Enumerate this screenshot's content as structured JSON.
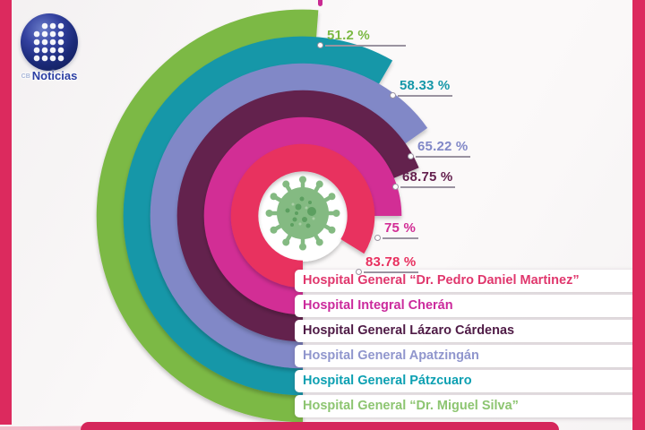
{
  "page": {
    "background": "#fbf9f9",
    "edge_color": "#dc2a5e",
    "bottom_bar_color": "#d5275b",
    "light_pink_wedge_color": "#f2bcca",
    "underline_color": "#9a93a0",
    "title_remnant_color": "#c92a92"
  },
  "brand": {
    "prefix": "CB",
    "name": "Noticias",
    "logo_icon": "dot-matrix-sphere"
  },
  "chart_data": {
    "type": "bar",
    "variant": "radial-concentric-arcs",
    "unit": "%",
    "start_angle_deg": 180,
    "sweep_direction": "clockwise",
    "value_range": [
      0,
      100
    ],
    "center_icon": "coronavirus-virus",
    "center_icon_colors": {
      "body": "#84ba82",
      "spots": "#5c9f60",
      "speckles": "#aacfa6"
    },
    "order_note": "index 0 = innermost arc, listed top-to-bottom in legend",
    "categories": [
      "Hospital General “Dr. Pedro Daniel Martinez”",
      "Hospital Integral Cherán",
      "Hospital General Lázaro Cárdenas",
      "Hospital General Apatzingán",
      "Hospital General Pátzcuaro",
      "Hospital General “Dr. Miguel Silva”"
    ],
    "values": [
      83.78,
      75,
      68.75,
      65.22,
      58.33,
      51.2
    ],
    "value_labels": [
      "83.78 %",
      "75 %",
      "68.75 %",
      "65.22 %",
      "58.33 %",
      "51.2 %"
    ],
    "colors": [
      "#e8305f",
      "#d22d95",
      "#64204e",
      "#8188c7",
      "#1697a8",
      "#7cb944"
    ],
    "legend_text_colors": [
      "#e0376d",
      "#cb2a9c",
      "#4f1b46",
      "#9096cd",
      "#0da0b2",
      "#8dc571"
    ],
    "legend_position": "bottom-right",
    "grid": false
  }
}
